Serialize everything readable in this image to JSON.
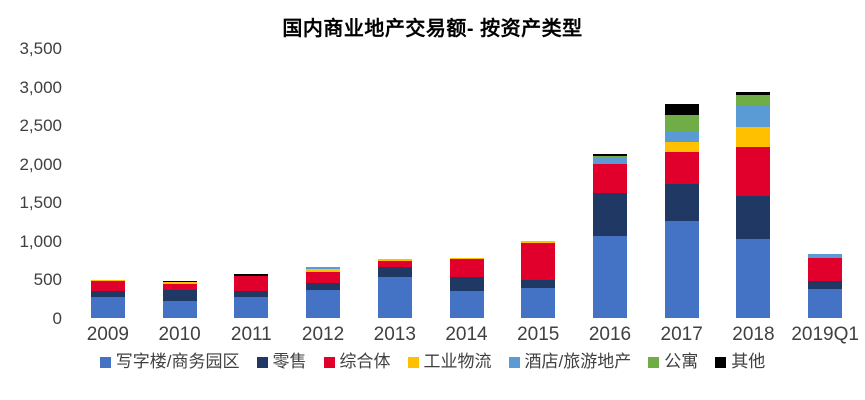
{
  "chart_data": {
    "type": "bar",
    "stacked": true,
    "title": "国内商业地产交易额- 按资产类型",
    "categories": [
      "2009",
      "2010",
      "2011",
      "2012",
      "2013",
      "2014",
      "2015",
      "2016",
      "2017",
      "2018",
      "2019Q1"
    ],
    "series": [
      {
        "name": "写字楼/商务园区",
        "color": "#4472C4",
        "values": [
          270,
          220,
          275,
          365,
          530,
          350,
          395,
          1065,
          1265,
          1025,
          375
        ]
      },
      {
        "name": "零售",
        "color": "#1F3864",
        "values": [
          80,
          140,
          80,
          90,
          130,
          180,
          100,
          565,
          475,
          560,
          100
        ]
      },
      {
        "name": "综合体",
        "color": "#E0002B",
        "values": [
          125,
          80,
          195,
          145,
          80,
          230,
          480,
          370,
          415,
          640,
          310
        ]
      },
      {
        "name": "工业物流",
        "color": "#FFC000",
        "values": [
          25,
          25,
          0,
          40,
          25,
          25,
          25,
          0,
          135,
          260,
          0
        ]
      },
      {
        "name": "酒店/旅游地产",
        "color": "#5B9BD5",
        "values": [
          0,
          0,
          0,
          25,
          0,
          0,
          0,
          80,
          140,
          280,
          45
        ]
      },
      {
        "name": "公寓",
        "color": "#70AD47",
        "values": [
          0,
          0,
          0,
          0,
          0,
          0,
          0,
          20,
          205,
          125,
          0
        ]
      },
      {
        "name": "其他",
        "color": "#000000",
        "values": [
          0,
          20,
          20,
          0,
          0,
          0,
          0,
          25,
          140,
          45,
          0
        ]
      }
    ],
    "xlabel": "",
    "ylabel": "",
    "ylim": [
      0,
      3500
    ],
    "y_tick_labels": [
      "0",
      "500",
      "1,000",
      "1,500",
      "2,000",
      "2,500",
      "3,000",
      "3,500"
    ],
    "grid": false,
    "legend_position": "bottom"
  }
}
